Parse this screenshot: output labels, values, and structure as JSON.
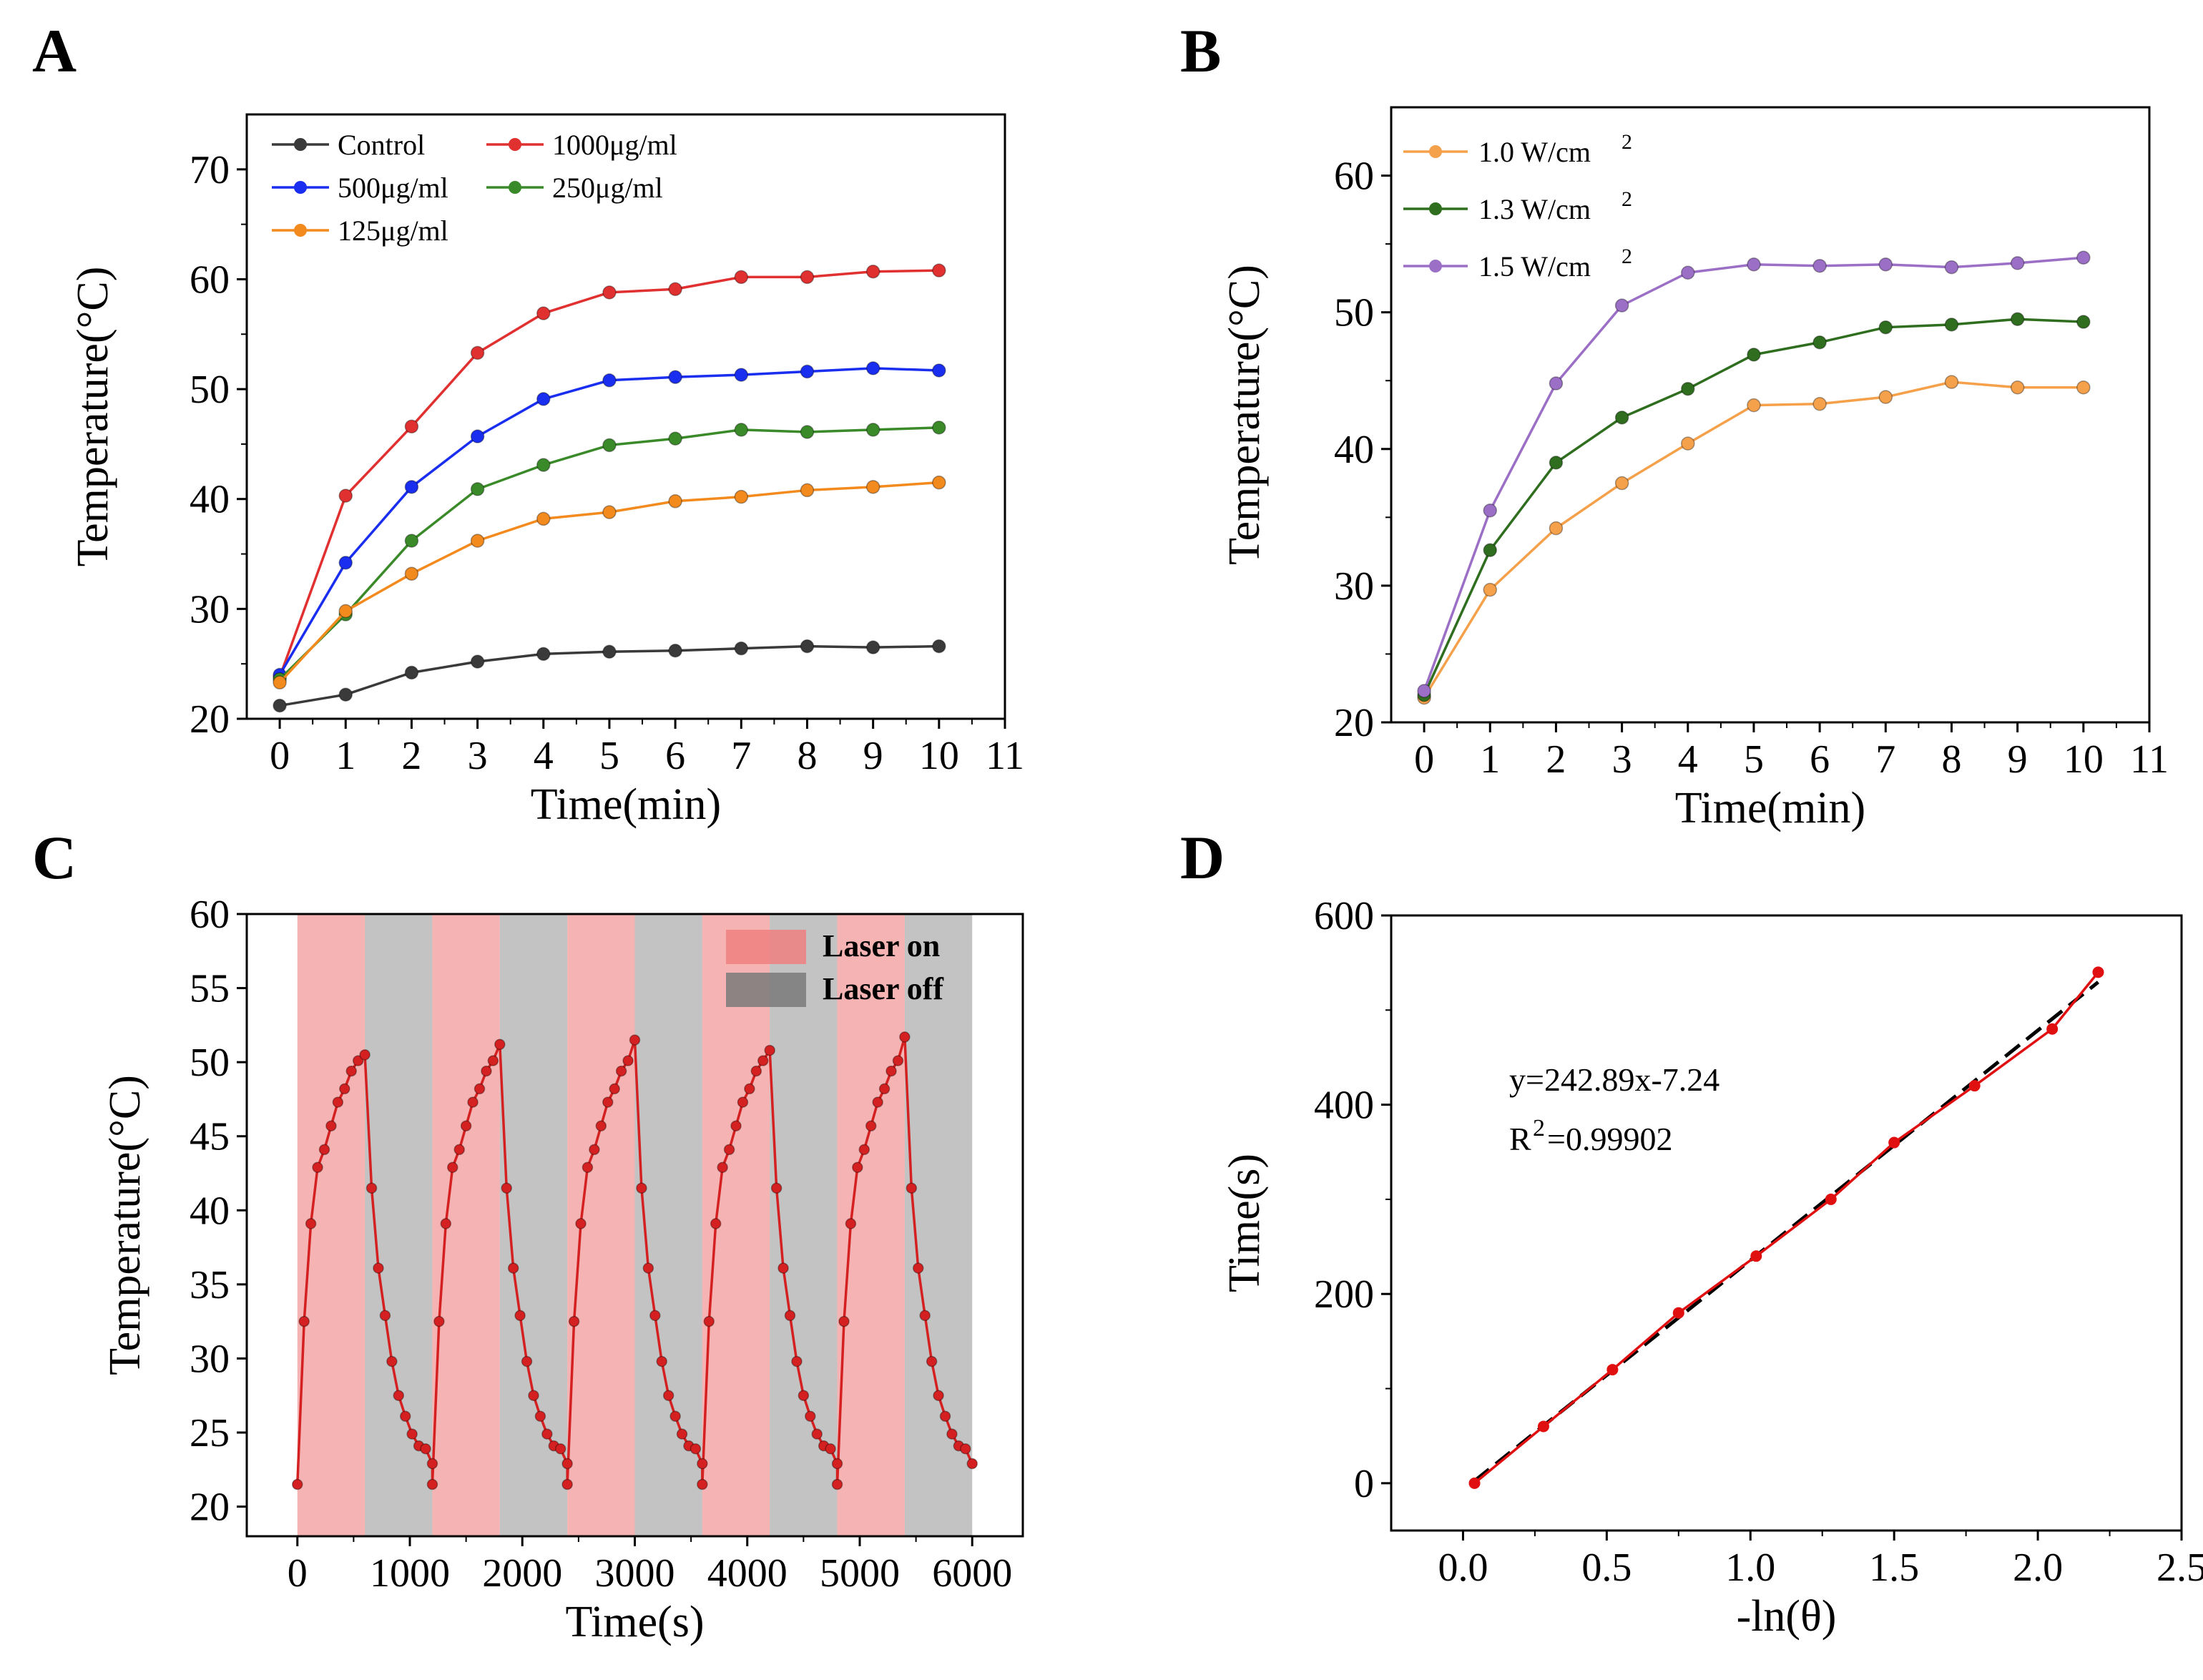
{
  "chart_data": [
    {
      "panel": "A",
      "type": "line",
      "xlabel": "Time(min)",
      "ylabel": "Temperature(°C)",
      "xlim": [
        -0.5,
        11
      ],
      "ylim": [
        20,
        75
      ],
      "xticks": [
        "0",
        "1",
        "2",
        "3",
        "4",
        "5",
        "6",
        "7",
        "8",
        "9",
        "10",
        "11"
      ],
      "yticks": [
        "20",
        "30",
        "40",
        "50",
        "60",
        "70"
      ],
      "legend_position": "top-left",
      "x": [
        0,
        1,
        2,
        3,
        4,
        5,
        6,
        7,
        8,
        9,
        10
      ],
      "series": [
        {
          "name": "Control",
          "color": "#3a3a3a",
          "values": [
            21.2,
            22.2,
            24.2,
            25.2,
            25.9,
            26.1,
            26.2,
            26.4,
            26.6,
            26.5,
            26.6
          ]
        },
        {
          "name": "1000μg/ml",
          "color": "#e03030",
          "values": [
            23.8,
            40.3,
            46.6,
            53.3,
            56.9,
            58.8,
            59.1,
            60.2,
            60.2,
            60.7,
            60.8
          ]
        },
        {
          "name": "500μg/ml",
          "color": "#1a2ef0",
          "values": [
            24.0,
            34.2,
            41.1,
            45.7,
            49.1,
            50.8,
            51.1,
            51.3,
            51.6,
            51.9,
            51.7
          ]
        },
        {
          "name": "250μg/ml",
          "color": "#3a8a2a",
          "values": [
            23.6,
            29.5,
            36.2,
            40.9,
            43.1,
            44.9,
            45.5,
            46.3,
            46.1,
            46.3,
            46.5
          ]
        },
        {
          "name": "125μg/ml",
          "color": "#f28a1e",
          "values": [
            23.3,
            29.8,
            33.2,
            36.2,
            38.2,
            38.8,
            39.8,
            40.2,
            40.8,
            41.1,
            41.5
          ]
        }
      ]
    },
    {
      "panel": "B",
      "type": "line",
      "xlabel": "Time(min)",
      "ylabel": "Temperature(°C)",
      "xlim": [
        -0.5,
        11
      ],
      "ylim": [
        20,
        65
      ],
      "xticks": [
        "0",
        "1",
        "2",
        "3",
        "4",
        "5",
        "6",
        "7",
        "8",
        "9",
        "10",
        "11"
      ],
      "yticks": [
        "20",
        "30",
        "40",
        "50",
        "60"
      ],
      "legend_position": "top-left",
      "x": [
        0,
        1,
        2,
        3,
        4,
        5,
        6,
        7,
        8,
        9,
        10
      ],
      "series": [
        {
          "name": "1.0 W/cm",
          "sup": "2",
          "color": "#f5a04a",
          "values": [
            21.8,
            29.7,
            34.2,
            37.5,
            40.4,
            43.2,
            43.3,
            43.8,
            44.9,
            44.5,
            44.5
          ]
        },
        {
          "name": "1.3 W/cm",
          "sup": "2",
          "color": "#2f6e1f",
          "values": [
            22.0,
            32.6,
            39.0,
            42.3,
            44.4,
            46.9,
            47.8,
            48.9,
            49.1,
            49.5,
            49.3
          ]
        },
        {
          "name": "1.5 W/cm",
          "sup": "2",
          "color": "#9c6fc7",
          "values": [
            22.3,
            35.5,
            44.8,
            50.5,
            52.9,
            53.5,
            53.4,
            53.5,
            53.3,
            53.6,
            54.0
          ]
        }
      ]
    },
    {
      "panel": "C",
      "type": "line",
      "xlabel": "Time(s)",
      "ylabel": "Temperature(°C)",
      "xlim": [
        -450,
        6450
      ],
      "ylim": [
        18,
        60
      ],
      "xticks": [
        "0",
        "1000",
        "2000",
        "3000",
        "4000",
        "5000",
        "6000"
      ],
      "yticks": [
        "20",
        "25",
        "30",
        "35",
        "40",
        "45",
        "50",
        "55",
        "60"
      ],
      "legend_position": "top-right",
      "legend": [
        {
          "label": "Laser on",
          "color": "#f08080"
        },
        {
          "label": "Laser off",
          "color": "#7a7a7a"
        }
      ],
      "cycle_period_s": 1200,
      "laser_on_duration_s": 600,
      "cycles": 5,
      "series": [
        {
          "name": "Temperature",
          "color": "#d42020",
          "heating": [
            21.5,
            32.5,
            39.1,
            42.9,
            44.1,
            45.7,
            47.3,
            48.2,
            49.4,
            50.1,
            50.5
          ],
          "cooling": [
            41.5,
            36.1,
            32.9,
            29.8,
            27.5,
            26.1,
            24.9,
            24.1,
            23.9,
            22.9
          ],
          "peaks": [
            50.5,
            51.2,
            51.5,
            50.8,
            51.7
          ]
        }
      ]
    },
    {
      "panel": "D",
      "type": "scatter",
      "xlabel": "-ln(θ)",
      "ylabel": "Time(s)",
      "xlim": [
        -0.25,
        2.5
      ],
      "ylim": [
        -50,
        600
      ],
      "xticks": [
        "0.0",
        "0.5",
        "1.0",
        "1.5",
        "2.0",
        "2.5"
      ],
      "yticks": [
        "0",
        "200",
        "400",
        "600"
      ],
      "x": [
        0.04,
        0.28,
        0.52,
        0.75,
        1.02,
        1.28,
        1.5,
        1.78,
        2.05,
        2.21
      ],
      "values": [
        0,
        60,
        120,
        180,
        240,
        300,
        360,
        420,
        480,
        540
      ],
      "fit": {
        "slope": 242.89,
        "intercept": -7.24,
        "x_range": [
          0.04,
          2.21
        ]
      },
      "equation": "y=242.89x-7.24",
      "r2_prefix": "R",
      "r2_sup": "2",
      "r2_value": "=0.99902"
    }
  ],
  "labels": {
    "panel_a": "A",
    "panel_b": "B",
    "panel_c": "C",
    "panel_d": "D"
  }
}
